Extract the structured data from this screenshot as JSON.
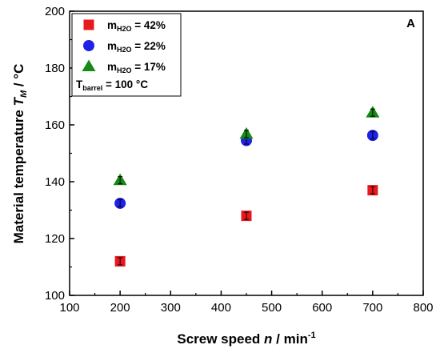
{
  "chart_data": {
    "type": "scatter",
    "panel_label": "A",
    "xlabel": {
      "prefix": "Screw speed ",
      "var": "n",
      "suffix": " / min",
      "sup": "-1"
    },
    "ylabel": {
      "prefix": "Material temperature ",
      "var": "T",
      "var_sub": "M",
      "suffix": " / °C"
    },
    "xlim": [
      100,
      800
    ],
    "ylim": [
      100,
      200
    ],
    "x_ticks": [
      "100",
      "200",
      "300",
      "400",
      "500",
      "600",
      "700",
      "800"
    ],
    "y_ticks": [
      "100",
      "120",
      "140",
      "160",
      "180",
      "200"
    ],
    "grid": false,
    "legend_position": "top-left",
    "series": [
      {
        "name": "m_H2O = 42%",
        "label": "m",
        "sub": "H2O",
        "suffix": " = 42%",
        "marker": "square",
        "color": "#e8191e",
        "points": [
          {
            "x": 200,
            "y": 112
          },
          {
            "x": 450,
            "y": 128
          },
          {
            "x": 700,
            "y": 137
          }
        ]
      },
      {
        "name": "m_H2O = 22%",
        "label": "m",
        "sub": "H2O",
        "suffix": " = 22%",
        "marker": "circle",
        "color": "#1e22e8",
        "points": [
          {
            "x": 200,
            "y": 132.4
          },
          {
            "x": 450,
            "y": 154.5
          },
          {
            "x": 700,
            "y": 156.3
          }
        ]
      },
      {
        "name": "m_H2O = 17%",
        "label": "m",
        "sub": "H2O",
        "suffix": " = 17%",
        "marker": "triangle",
        "color": "#158a15",
        "points": [
          {
            "x": 200,
            "y": 140.5
          },
          {
            "x": 450,
            "y": 156.8
          },
          {
            "x": 700,
            "y": 164.3
          }
        ]
      }
    ],
    "annotation": {
      "label": "T",
      "sub": "barrel",
      "suffix": " = 100 °C"
    }
  }
}
